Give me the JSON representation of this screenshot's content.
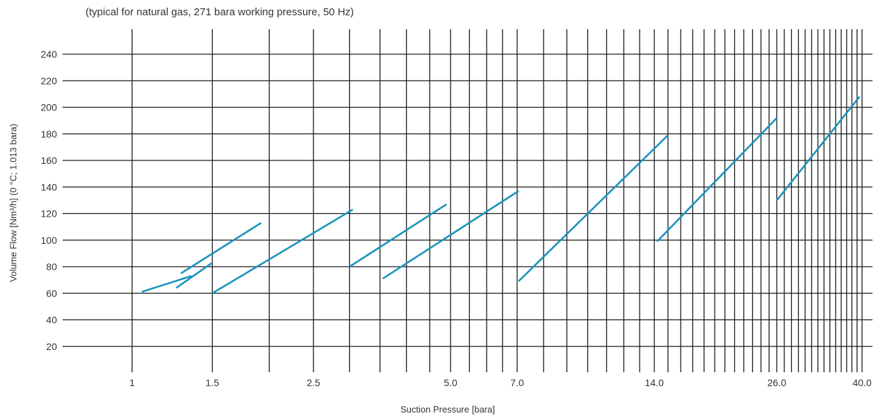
{
  "chart_data": {
    "type": "line",
    "subtitle": "(typical for natural gas, 271 bara working pressure, 50 Hz)",
    "xlabel": "Suction Pressure [bara]",
    "ylabel": "Volume Flow [Nm³/h] (0 °C; 1.013 bara)",
    "x_scale": "log",
    "xlim": [
      1,
      40
    ],
    "ylim": [
      0,
      250
    ],
    "grid": true,
    "x_tick_labels": [
      {
        "value": 1,
        "label": "1"
      },
      {
        "value": 1.5,
        "label": "1.5"
      },
      {
        "value": 2.5,
        "label": "2.5"
      },
      {
        "value": 5.0,
        "label": "5.0"
      },
      {
        "value": 7.0,
        "label": "7.0"
      },
      {
        "value": 14.0,
        "label": "14.0"
      },
      {
        "value": 26.0,
        "label": "26.0"
      },
      {
        "value": 40.0,
        "label": "40.0"
      }
    ],
    "x_gridlines": [
      1,
      1.5,
      2,
      2.5,
      3,
      3.5,
      4,
      4.5,
      5,
      5.5,
      6,
      6.5,
      7,
      8,
      9,
      10,
      11,
      12,
      13,
      14,
      15,
      16,
      17,
      18,
      19,
      20,
      21,
      22,
      23,
      24,
      25,
      26,
      27,
      28,
      29,
      30,
      31,
      32,
      33,
      34,
      35,
      36,
      37,
      38,
      39,
      40
    ],
    "y_ticks": [
      20,
      40,
      60,
      80,
      100,
      120,
      140,
      160,
      180,
      200,
      220,
      240
    ],
    "series": [
      {
        "x": [
          1.05,
          1.35
        ],
        "y": [
          61,
          73
        ]
      },
      {
        "x": [
          1.25,
          1.5
        ],
        "y": [
          64,
          83
        ]
      },
      {
        "x": [
          1.28,
          1.92
        ],
        "y": [
          75,
          113
        ]
      },
      {
        "x": [
          1.5,
          3.05
        ],
        "y": [
          60,
          123
        ]
      },
      {
        "x": [
          3.0,
          4.9
        ],
        "y": [
          80,
          127
        ]
      },
      {
        "x": [
          3.55,
          7.05
        ],
        "y": [
          71,
          137
        ]
      },
      {
        "x": [
          7.05,
          15.0
        ],
        "y": [
          69,
          179
        ]
      },
      {
        "x": [
          14.2,
          26.0
        ],
        "y": [
          99,
          192
        ]
      },
      {
        "x": [
          26.0,
          39.5
        ],
        "y": [
          130,
          208
        ]
      }
    ]
  },
  "colors": {
    "line": "#1a93bd",
    "grid": "#1a1a1a",
    "text": "#333333"
  }
}
